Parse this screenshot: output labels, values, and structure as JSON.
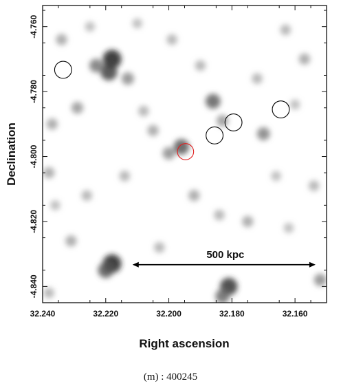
{
  "chart_data": {
    "type": "image",
    "xlabel": "Right ascension",
    "ylabel": "Declination",
    "x_ticks": [
      "32.240",
      "32.220",
      "32.200",
      "32.180",
      "32.160"
    ],
    "x_tick_values": [
      32.24,
      32.22,
      32.2,
      32.18,
      32.16
    ],
    "y_ticks": [
      "-4.760",
      "-4.780",
      "-4.800",
      "-4.820",
      "-4.840"
    ],
    "y_tick_values": [
      -4.76,
      -4.78,
      -4.8,
      -4.82,
      -4.84
    ],
    "xlim": [
      32.24,
      32.15
    ],
    "ylim": [
      -4.845,
      -4.7535
    ],
    "grid": false,
    "colormap": "grayscale (white = low, black = high)",
    "blobs": [
      {
        "ra": 32.218,
        "dec": -4.77,
        "intensity": 0.95
      },
      {
        "ra": 32.219,
        "dec": -4.774,
        "intensity": 0.8
      },
      {
        "ra": 32.223,
        "dec": -4.772,
        "intensity": 0.55
      },
      {
        "ra": 32.213,
        "dec": -4.776,
        "intensity": 0.45
      },
      {
        "ra": 32.234,
        "dec": -4.764,
        "intensity": 0.35
      },
      {
        "ra": 32.229,
        "dec": -4.785,
        "intensity": 0.4
      },
      {
        "ra": 32.237,
        "dec": -4.79,
        "intensity": 0.35
      },
      {
        "ra": 32.208,
        "dec": -4.786,
        "intensity": 0.3
      },
      {
        "ra": 32.196,
        "dec": -4.797,
        "intensity": 0.7
      },
      {
        "ra": 32.2,
        "dec": -4.799,
        "intensity": 0.45
      },
      {
        "ra": 32.205,
        "dec": -4.792,
        "intensity": 0.35
      },
      {
        "ra": 32.186,
        "dec": -4.783,
        "intensity": 0.65
      },
      {
        "ra": 32.183,
        "dec": -4.789,
        "intensity": 0.4
      },
      {
        "ra": 32.17,
        "dec": -4.793,
        "intensity": 0.5
      },
      {
        "ra": 32.157,
        "dec": -4.77,
        "intensity": 0.35
      },
      {
        "ra": 32.163,
        "dec": -4.761,
        "intensity": 0.3
      },
      {
        "ra": 32.172,
        "dec": -4.776,
        "intensity": 0.3
      },
      {
        "ra": 32.19,
        "dec": -4.772,
        "intensity": 0.3
      },
      {
        "ra": 32.199,
        "dec": -4.764,
        "intensity": 0.3
      },
      {
        "ra": 32.21,
        "dec": -4.759,
        "intensity": 0.25
      },
      {
        "ra": 32.225,
        "dec": -4.76,
        "intensity": 0.25
      },
      {
        "ra": 32.238,
        "dec": -4.805,
        "intensity": 0.35
      },
      {
        "ra": 32.226,
        "dec": -4.812,
        "intensity": 0.3
      },
      {
        "ra": 32.214,
        "dec": -4.806,
        "intensity": 0.3
      },
      {
        "ra": 32.192,
        "dec": -4.812,
        "intensity": 0.35
      },
      {
        "ra": 32.184,
        "dec": -4.818,
        "intensity": 0.3
      },
      {
        "ra": 32.175,
        "dec": -4.82,
        "intensity": 0.35
      },
      {
        "ra": 32.162,
        "dec": -4.822,
        "intensity": 0.25
      },
      {
        "ra": 32.154,
        "dec": -4.809,
        "intensity": 0.3
      },
      {
        "ra": 32.166,
        "dec": -4.806,
        "intensity": 0.25
      },
      {
        "ra": 32.231,
        "dec": -4.826,
        "intensity": 0.35
      },
      {
        "ra": 32.218,
        "dec": -4.833,
        "intensity": 0.95
      },
      {
        "ra": 32.22,
        "dec": -4.835,
        "intensity": 0.7
      },
      {
        "ra": 32.203,
        "dec": -4.828,
        "intensity": 0.3
      },
      {
        "ra": 32.181,
        "dec": -4.84,
        "intensity": 0.85
      },
      {
        "ra": 32.183,
        "dec": -4.843,
        "intensity": 0.6
      },
      {
        "ra": 32.152,
        "dec": -4.838,
        "intensity": 0.45
      },
      {
        "ra": 32.238,
        "dec": -4.842,
        "intensity": 0.3
      },
      {
        "ra": 32.16,
        "dec": -4.784,
        "intensity": 0.25
      },
      {
        "ra": 32.236,
        "dec": -4.815,
        "intensity": 0.25
      }
    ],
    "black_circles": [
      {
        "ra": 32.2335,
        "dec": -4.7733
      },
      {
        "ra": 32.1855,
        "dec": -4.7935
      },
      {
        "ra": 32.1795,
        "dec": -4.7895
      },
      {
        "ra": 32.1645,
        "dec": -4.7855
      }
    ],
    "red_circle": {
      "ra": 32.1947,
      "dec": -4.7985,
      "color": "#e02020"
    },
    "circle_radius_ra": 0.0027,
    "scale_bar": {
      "label": "500 kpc",
      "ra_start": 32.2115,
      "ra_end": 32.1535,
      "dec": -4.8333
    }
  },
  "caption": "(m) : 400245"
}
